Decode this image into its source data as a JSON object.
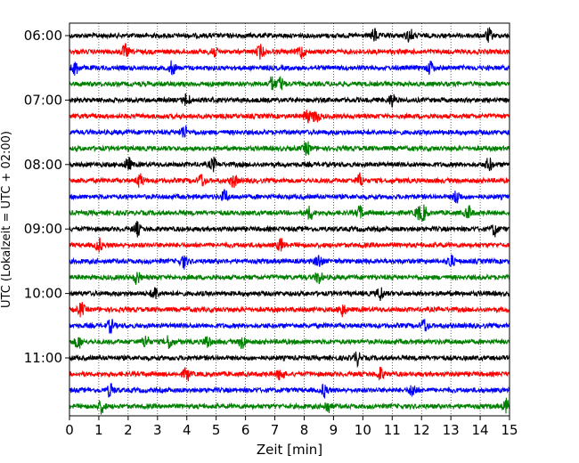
{
  "chart_data": {
    "type": "line",
    "title": "",
    "xlabel": "Zeit  [min]",
    "ylabel": "UTC (Lokalzeit = UTC + 02:00)",
    "xlim": [
      0,
      15
    ],
    "x_ticks": [
      "0",
      "1",
      "2",
      "3",
      "4",
      "5",
      "6",
      "7",
      "8",
      "9",
      "10",
      "11",
      "12",
      "13",
      "14",
      "15"
    ],
    "y_ticks": [
      "06:00",
      "07:00",
      "08:00",
      "09:00",
      "10:00",
      "11:00"
    ],
    "grid": "vertical dotted",
    "trace_interval_minutes": 15,
    "trace_colors": [
      "#000000",
      "#ff0000",
      "#0000ff",
      "#008000"
    ],
    "traces": [
      {
        "start": "06:00",
        "color": "#000000",
        "events_min": [
          10.4,
          11.6,
          14.3
        ]
      },
      {
        "start": "06:15",
        "color": "#ff0000",
        "events_min": [
          1.9,
          4.9,
          6.5,
          7.9
        ]
      },
      {
        "start": "06:30",
        "color": "#0000ff",
        "events_min": [
          0.2,
          3.5,
          12.3
        ]
      },
      {
        "start": "06:45",
        "color": "#008000",
        "events_min": [
          6.9,
          7.2
        ]
      },
      {
        "start": "07:00",
        "color": "#000000",
        "events_min": [
          4.0,
          11.0
        ]
      },
      {
        "start": "07:15",
        "color": "#ff0000",
        "events_min": [
          8.1,
          8.4
        ]
      },
      {
        "start": "07:30",
        "color": "#0000ff",
        "events_min": [
          3.9
        ]
      },
      {
        "start": "07:45",
        "color": "#008000",
        "events_min": [
          8.1
        ]
      },
      {
        "start": "08:00",
        "color": "#000000",
        "events_min": [
          2.0,
          4.9,
          14.3
        ]
      },
      {
        "start": "08:15",
        "color": "#ff0000",
        "events_min": [
          2.4,
          4.5,
          5.6,
          9.9
        ]
      },
      {
        "start": "08:30",
        "color": "#0000ff",
        "events_min": [
          5.3,
          13.2
        ]
      },
      {
        "start": "08:45",
        "color": "#008000",
        "events_min": [
          8.2,
          9.9,
          11.9,
          12.1,
          13.6
        ]
      },
      {
        "start": "09:00",
        "color": "#000000",
        "events_min": [
          2.3,
          14.5
        ]
      },
      {
        "start": "09:15",
        "color": "#ff0000",
        "events_min": [
          1.0,
          7.2
        ]
      },
      {
        "start": "09:30",
        "color": "#0000ff",
        "events_min": [
          3.9,
          8.5,
          13.0
        ]
      },
      {
        "start": "09:45",
        "color": "#008000",
        "events_min": [
          2.3,
          8.5
        ]
      },
      {
        "start": "10:00",
        "color": "#000000",
        "events_min": [
          2.9,
          10.6
        ]
      },
      {
        "start": "10:15",
        "color": "#ff0000",
        "events_min": [
          0.4,
          9.3
        ]
      },
      {
        "start": "10:30",
        "color": "#0000ff",
        "events_min": [
          1.4,
          12.1
        ]
      },
      {
        "start": "10:45",
        "color": "#008000",
        "events_min": [
          0.3,
          2.6,
          3.4,
          4.7,
          5.9
        ]
      },
      {
        "start": "11:00",
        "color": "#000000",
        "events_min": [
          9.8
        ]
      },
      {
        "start": "11:15",
        "color": "#ff0000",
        "events_min": [
          4.0,
          7.2,
          10.6
        ]
      },
      {
        "start": "11:30",
        "color": "#0000ff",
        "events_min": [
          1.4,
          8.7,
          11.7
        ]
      },
      {
        "start": "11:45",
        "color": "#008000",
        "events_min": [
          1.1,
          8.8,
          14.9
        ]
      }
    ]
  }
}
